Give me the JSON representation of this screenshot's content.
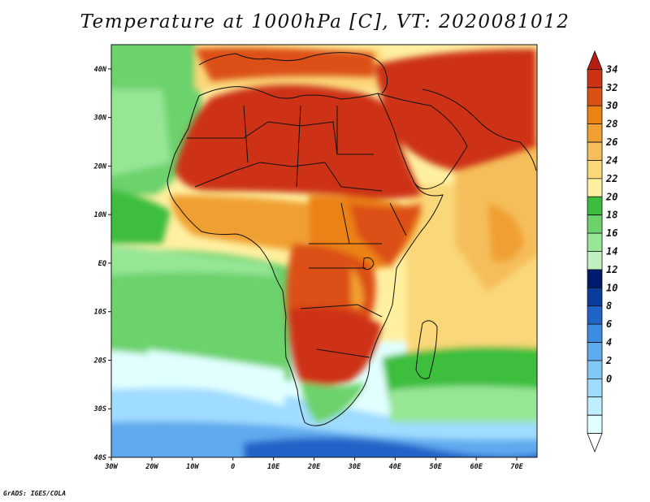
{
  "title": "Temperature at 1000hPa [C], VT: 2020081012",
  "credit": "GrADS: IGES/COLA",
  "map": {
    "lon_range": [
      -30,
      75
    ],
    "lat_range": [
      -40,
      45
    ],
    "lat_ticks": [
      {
        "value": 40,
        "label": "40N"
      },
      {
        "value": 30,
        "label": "30N"
      },
      {
        "value": 20,
        "label": "20N"
      },
      {
        "value": 10,
        "label": "10N"
      },
      {
        "value": 0,
        "label": "EQ"
      },
      {
        "value": -10,
        "label": "10S"
      },
      {
        "value": -20,
        "label": "20S"
      },
      {
        "value": -30,
        "label": "30S"
      },
      {
        "value": -40,
        "label": "40S"
      }
    ],
    "lon_ticks": [
      {
        "value": -30,
        "label": "30W"
      },
      {
        "value": -20,
        "label": "20W"
      },
      {
        "value": -10,
        "label": "10W"
      },
      {
        "value": 0,
        "label": "0"
      },
      {
        "value": 10,
        "label": "10E"
      },
      {
        "value": 20,
        "label": "20E"
      },
      {
        "value": 30,
        "label": "30E"
      },
      {
        "value": 40,
        "label": "40E"
      },
      {
        "value": 50,
        "label": "50E"
      },
      {
        "value": 60,
        "label": "60E"
      },
      {
        "value": 70,
        "label": "70E"
      }
    ]
  },
  "colorbar": {
    "labels": [
      "34",
      "32",
      "30",
      "28",
      "26",
      "24",
      "22",
      "20",
      "18",
      "16",
      "14",
      "12",
      "10",
      "8",
      "6",
      "4",
      "2",
      "0"
    ],
    "levels": [
      0,
      2,
      4,
      6,
      8,
      10,
      12,
      14,
      16,
      18,
      20,
      22,
      24,
      26,
      28,
      30,
      32,
      34
    ],
    "colors": [
      "#ffffff",
      "#e1ffff",
      "#bfeeff",
      "#a0dcff",
      "#82c8f5",
      "#5eaaee",
      "#3c8ce2",
      "#2064c8",
      "#0a3c9c",
      "#001a6e",
      "#c0f0c0",
      "#96e696",
      "#6cd26c",
      "#3cbe3c",
      "#fff0a0",
      "#fad778",
      "#f5be5a",
      "#f0a032",
      "#eb8214",
      "#dc5014",
      "#cd3214",
      "#b41e14"
    ]
  },
  "chart_data": {
    "type": "heatmap",
    "title": "Temperature at 1000hPa [C], VT: 2020081012",
    "variable": "Temperature at 1000hPa",
    "units": "C",
    "valid_time": "2020081012",
    "x_range": [
      -30,
      75
    ],
    "y_range": [
      -40,
      45
    ],
    "colorbar_range": [
      0,
      34
    ],
    "colorbar_step": 2
  }
}
